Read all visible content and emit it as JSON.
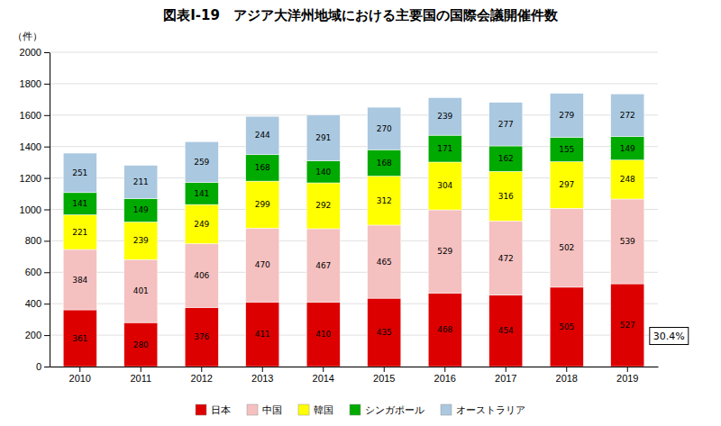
{
  "chart_data": {
    "type": "bar",
    "stacked": true,
    "title": "図表Ⅰ-19　アジア大洋州地域における主要国の国際会議開催件数",
    "ylabel": "（件）",
    "categories": [
      2010,
      2011,
      2012,
      2013,
      2014,
      2015,
      2016,
      2017,
      2018,
      2019
    ],
    "series": [
      {
        "name": "日本",
        "color": "#dd0000",
        "values": [
          361,
          280,
          376,
          411,
          410,
          435,
          468,
          454,
          505,
          527
        ]
      },
      {
        "name": "中国",
        "color": "#f5c0c0",
        "values": [
          384,
          401,
          406,
          470,
          467,
          465,
          529,
          472,
          502,
          539
        ]
      },
      {
        "name": "韓国",
        "color": "#ffff00",
        "values": [
          221,
          239,
          249,
          299,
          292,
          312,
          304,
          316,
          297,
          248
        ]
      },
      {
        "name": "シンガポール",
        "color": "#00aa00",
        "values": [
          141,
          149,
          141,
          168,
          140,
          168,
          171,
          162,
          155,
          149
        ]
      },
      {
        "name": "オーストラリア",
        "color": "#aac8e0",
        "values": [
          251,
          211,
          259,
          244,
          291,
          270,
          239,
          277,
          279,
          272
        ]
      }
    ],
    "annotations": [
      "30.4%"
    ],
    "ylim": [
      0,
      2000
    ],
    "yticks": [
      0,
      200,
      400,
      600,
      800,
      1000,
      1200,
      1400,
      1600,
      1800,
      2000
    ],
    "grid": true,
    "legend": "bottom",
    "data_labels": true
  }
}
